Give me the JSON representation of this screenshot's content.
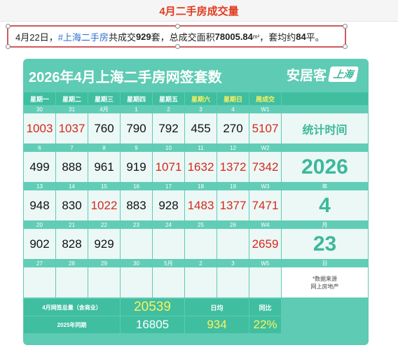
{
  "header_title": "4月二手房成交量",
  "summary": {
    "date": "4月22日，",
    "hashtag": "#上海二手房",
    "part1": " 共成交",
    "units": "929",
    "part2": "套，总成交面积",
    "area": "78005.84",
    "sup": "m²",
    "part3": "，套均约",
    "avg": "84",
    "part4": "平。"
  },
  "card": {
    "title": "2026年4月上海二手房网签套数",
    "logo_main": "安居客",
    "logo_badge": "上海"
  },
  "weekday_headers": [
    "星期一",
    "星期二",
    "星期三",
    "星期四",
    "星期五",
    "星期六",
    "星期日",
    "周成交"
  ],
  "weeks": [
    {
      "days": [
        "30",
        "31",
        "4月",
        "1",
        "2",
        "3",
        "4",
        "W1"
      ],
      "values": [
        "1003",
        "1037",
        "760",
        "790",
        "792",
        "455",
        "270",
        "5107"
      ],
      "red": [
        true,
        true,
        false,
        false,
        false,
        false,
        false,
        true
      ]
    },
    {
      "days": [
        "6",
        "7",
        "8",
        "9",
        "10",
        "11",
        "12",
        "W2"
      ],
      "values": [
        "499",
        "888",
        "961",
        "919",
        "1071",
        "1632",
        "1372",
        "7342"
      ],
      "red": [
        false,
        false,
        false,
        false,
        true,
        true,
        true,
        true
      ]
    },
    {
      "days": [
        "13",
        "14",
        "15",
        "16",
        "17",
        "18",
        "19",
        "W3"
      ],
      "values": [
        "948",
        "830",
        "1022",
        "883",
        "928",
        "1483",
        "1377",
        "7471"
      ],
      "red": [
        false,
        false,
        true,
        false,
        false,
        true,
        true,
        true
      ]
    },
    {
      "days": [
        "20",
        "21",
        "22",
        "23",
        "24",
        "25",
        "26",
        "W4"
      ],
      "values": [
        "902",
        "828",
        "929",
        "",
        "",
        "",
        "",
        "2659"
      ],
      "red": [
        false,
        false,
        false,
        false,
        false,
        false,
        false,
        true
      ]
    },
    {
      "days": [
        "27",
        "28",
        "29",
        "30",
        "5月",
        "2",
        "3",
        "W5"
      ],
      "values": [
        "",
        "",
        "",
        "",
        "",
        "",
        "",
        ""
      ],
      "red": [
        false,
        false,
        false,
        false,
        false,
        false,
        false,
        false
      ]
    }
  ],
  "side": {
    "stat_label": "统计时间",
    "year": "2026",
    "year_label": "年",
    "month": "4",
    "month_label": "月",
    "day": "23",
    "day_label": "日",
    "note_line1": "*数据来源",
    "note_line2": "网上房地产"
  },
  "footer": {
    "total_label": "4月网签总量（含商业）",
    "total_value": "20539",
    "daily_label": "日均",
    "yoy_label": "同比",
    "last_year_label": "2025年同期",
    "last_year_value": "16805",
    "daily_value": "934",
    "yoy_value": "22%"
  },
  "colors": {
    "teal": "#5ecbb4",
    "dark_teal": "#3fbea0",
    "red": "#d8261c",
    "yellow": "#fff15c"
  }
}
